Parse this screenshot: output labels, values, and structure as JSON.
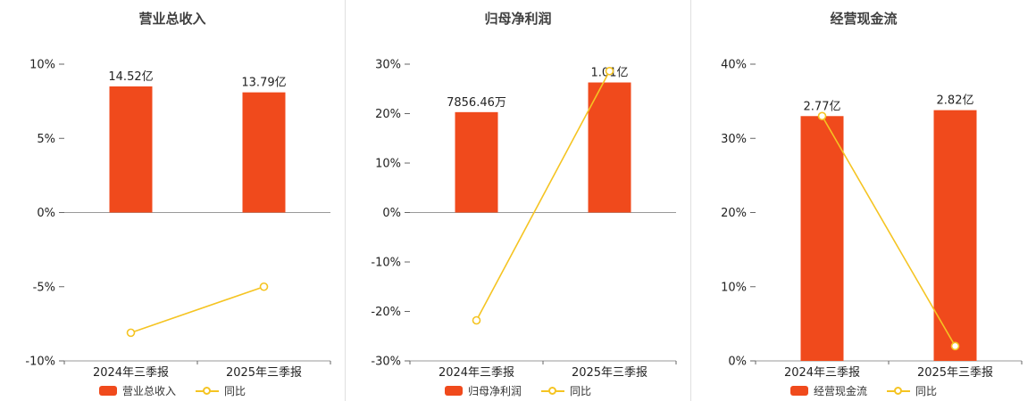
{
  "chart_data": [
    {
      "type": "bar",
      "title": "营业总收入",
      "categories": [
        "2024年三季报",
        "2025年三季报"
      ],
      "ylim": [
        -10,
        10
      ],
      "yticks": [
        -10,
        -5,
        0,
        5,
        10
      ],
      "ytick_suffix": "%",
      "grid": false,
      "legend_position": "bottom",
      "series": [
        {
          "name": "营业总收入",
          "type": "bar",
          "values": [
            8.5,
            8.1
          ],
          "labels": [
            "14.52亿",
            "13.79亿"
          ],
          "color": "#f04a1c"
        },
        {
          "name": "同比",
          "type": "line",
          "values": [
            -8.1,
            -5.0
          ],
          "color": "#f5c422"
        }
      ]
    },
    {
      "type": "bar",
      "title": "归母净利润",
      "categories": [
        "2024年三季报",
        "2025年三季报"
      ],
      "ylim": [
        -30,
        30
      ],
      "yticks": [
        -30,
        -20,
        -10,
        0,
        10,
        20,
        30
      ],
      "ytick_suffix": "%",
      "grid": false,
      "legend_position": "bottom",
      "series": [
        {
          "name": "归母净利润",
          "type": "bar",
          "values": [
            20.3,
            26.3
          ],
          "labels": [
            "7856.46万",
            "1.01亿"
          ],
          "color": "#f04a1c"
        },
        {
          "name": "同比",
          "type": "line",
          "values": [
            -21.8,
            28.6
          ],
          "color": "#f5c422"
        }
      ]
    },
    {
      "type": "bar",
      "title": "经营现金流",
      "categories": [
        "2024年三季报",
        "2025年三季报"
      ],
      "ylim": [
        0,
        40
      ],
      "yticks": [
        0,
        10,
        20,
        30,
        40
      ],
      "ytick_suffix": "%",
      "grid": false,
      "legend_position": "bottom",
      "series": [
        {
          "name": "经营现金流",
          "type": "bar",
          "values": [
            33.0,
            33.8
          ],
          "labels": [
            "2.77亿",
            "2.82亿"
          ],
          "color": "#f04a1c"
        },
        {
          "name": "同比",
          "type": "line",
          "values": [
            33.0,
            2.0
          ],
          "color": "#f5c422"
        }
      ]
    }
  ],
  "colors": {
    "bar": "#f04a1c",
    "line": "#f5c422",
    "axis": "#999999",
    "tick": "#666666",
    "text": "#222222",
    "title": "#404040",
    "separator": "#e0e0e0"
  }
}
